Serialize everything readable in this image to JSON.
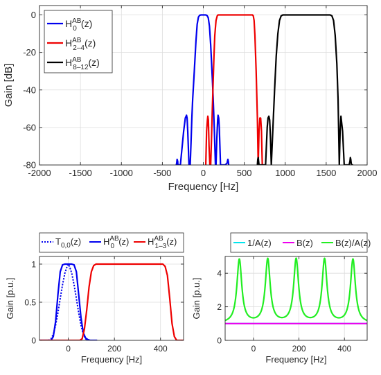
{
  "chart_data": [
    {
      "type": "line",
      "xlabel": "Frequency [Hz]",
      "ylabel": "Gain [dB]",
      "xlim": [
        -2000,
        2000
      ],
      "ylim": [
        -80,
        5
      ],
      "xticks": [
        "-2000",
        "-1500",
        "-1000",
        "-500",
        "0",
        "500",
        "1000",
        "1500",
        "2000"
      ],
      "yticks": [
        "0",
        "-20",
        "-40",
        "-60",
        "-80"
      ],
      "grid": true,
      "legend_position": "top-left",
      "series": [
        {
          "name": "H0AB(z)",
          "label_base": "H",
          "label_sub": "0",
          "label_sup": "AB",
          "label_tail": "(z)",
          "color": "#0000ee",
          "x": [
            -330,
            -325,
            -320,
            -313,
            -310,
            -300,
            -280,
            -240,
            -220,
            -205,
            -198,
            -190,
            -175,
            -160,
            -150,
            -140,
            -130,
            -110,
            -90,
            -75,
            -60,
            -45,
            -30,
            -15,
            0,
            15,
            30,
            45,
            60,
            75,
            90,
            110,
            120,
            135,
            148,
            155,
            165,
            175,
            180,
            188,
            195,
            210,
            230,
            265,
            290,
            300,
            305,
            310
          ],
          "y": [
            -80,
            -79,
            -77,
            -78,
            -80,
            -80,
            -80,
            -62,
            -55,
            -53.5,
            -55,
            -62,
            -80,
            -80,
            -68,
            -55,
            -45,
            -30,
            -14,
            -5,
            -1.2,
            -0.2,
            0,
            0,
            0,
            0,
            0,
            -0.3,
            -1.5,
            -6,
            -16,
            -34,
            -44,
            -62,
            -80,
            -80,
            -66,
            -56,
            -53.5,
            -55,
            -60,
            -80,
            -80,
            -80,
            -79,
            -77,
            -78,
            -80
          ]
        },
        {
          "name": "H2-4AB(z)",
          "label_base": "H",
          "label_sub": "2–4",
          "label_sup": "AB",
          "label_tail": "(z)",
          "color": "#ee0000",
          "x": [
            30,
            40,
            50,
            55,
            62,
            70,
            80,
            90,
            100,
            110,
            120,
            130,
            140,
            155,
            170,
            180,
            190,
            200,
            600,
            610,
            620,
            630,
            645,
            660,
            670,
            680,
            690,
            700,
            710,
            720
          ],
          "y": [
            -80,
            -62,
            -56,
            -54,
            -56,
            -70,
            -80,
            -80,
            -66,
            -50,
            -36,
            -22,
            -11,
            -3,
            -0.5,
            0,
            0,
            0,
            0,
            -0.5,
            -3,
            -11,
            -30,
            -55,
            -80,
            -62,
            -55,
            -55,
            -62,
            -80
          ]
        },
        {
          "name": "H8-12AB(z)",
          "label_base": "H",
          "label_sub": "8–12",
          "label_sup": "AB",
          "label_tail": "(z)",
          "color": "#000000",
          "x": [
            660,
            665,
            670,
            675,
            680,
            760,
            770,
            780,
            790,
            800,
            810,
            820,
            830,
            850,
            870,
            890,
            910,
            930,
            950,
            970,
            1550,
            1570,
            1590,
            1610,
            1630,
            1645,
            1660,
            1670,
            1680,
            1700,
            1720,
            1740,
            1780,
            1790,
            1795,
            1800,
            1805,
            1810,
            1830
          ],
          "y": [
            -80,
            -77,
            -76,
            -78,
            -80,
            -80,
            -70,
            -60,
            -55,
            -54,
            -56,
            -66,
            -80,
            -60,
            -40,
            -22,
            -10,
            -3,
            -0.5,
            0,
            0,
            -0.5,
            -3,
            -11,
            -26,
            -45,
            -80,
            -62,
            -54,
            -62,
            -80,
            -80,
            -80,
            -78,
            -76,
            -77,
            -79,
            -80,
            -80
          ]
        }
      ]
    },
    {
      "type": "line",
      "xlabel": "Frequency [Hz]",
      "ylabel": "Gain [p.u.]",
      "xlim": [
        -125,
        500
      ],
      "ylim": [
        0,
        1.1
      ],
      "xticks": [
        "0",
        "200",
        "400"
      ],
      "yticks": [
        "1",
        "0.5",
        "0"
      ],
      "grid": true,
      "legend_position": "top-outside",
      "series": [
        {
          "name": "T0,0(z)",
          "label_base": "T",
          "label_sub": "0,0",
          "label_sup": "",
          "label_tail": "(z)",
          "color": "#0000ee",
          "dash": "dotted",
          "x": [
            -125,
            -85,
            -75,
            -65,
            -55,
            -45,
            -35,
            -25,
            -15,
            -5,
            0,
            5,
            15,
            25,
            35,
            45,
            55,
            65,
            75,
            85,
            125
          ],
          "y": [
            0,
            0,
            0.02,
            0.08,
            0.2,
            0.36,
            0.55,
            0.73,
            0.88,
            0.97,
            1.0,
            0.97,
            0.88,
            0.73,
            0.55,
            0.36,
            0.2,
            0.08,
            0.02,
            0,
            0
          ]
        },
        {
          "name": "H0AB(z)",
          "label_base": "H",
          "label_sub": "0",
          "label_sup": "AB",
          "label_tail": "(z)",
          "color": "#0000ee",
          "x": [
            -125,
            -75,
            -65,
            -55,
            -45,
            -35,
            -25,
            -15,
            0,
            15,
            25,
            35,
            45,
            55,
            65,
            75,
            85,
            95,
            125
          ],
          "y": [
            0,
            0,
            0.05,
            0.25,
            0.6,
            0.9,
            0.99,
            1.0,
            1.0,
            1.0,
            0.99,
            0.9,
            0.6,
            0.3,
            0.1,
            0.03,
            0.01,
            0,
            0
          ]
        },
        {
          "name": "H1-3AB(z)",
          "label_base": "H",
          "label_sub": "1–3",
          "label_sup": "AB",
          "label_tail": "(z)",
          "color": "#ee0000",
          "x": [
            -125,
            50,
            60,
            70,
            80,
            90,
            100,
            110,
            120,
            130,
            140,
            400,
            410,
            420,
            430,
            440,
            450,
            460,
            470,
            500
          ],
          "y": [
            0,
            0,
            0.02,
            0.15,
            0.4,
            0.7,
            0.9,
            0.98,
            1.0,
            1.0,
            1.0,
            1.0,
            1.0,
            0.97,
            0.85,
            0.55,
            0.22,
            0.05,
            0,
            0
          ]
        }
      ]
    },
    {
      "type": "line",
      "xlabel": "Frequency [Hz]",
      "ylabel": "Gain [p.u.]",
      "xlim": [
        -125,
        500
      ],
      "ylim": [
        0,
        5
      ],
      "xticks": [
        "0",
        "200",
        "400"
      ],
      "yticks": [
        "4",
        "2",
        "0"
      ],
      "grid": true,
      "legend_position": "top-outside",
      "series": [
        {
          "name": "1/A(z)",
          "label_base": "1/A(z)",
          "label_sub": "",
          "label_sup": "",
          "label_tail": "",
          "color": "#00e5ee",
          "x": [
            -125,
            500
          ],
          "y": [
            1,
            1
          ]
        },
        {
          "name": "B(z)",
          "label_base": "B(z)",
          "label_sub": "",
          "label_sup": "",
          "label_tail": "",
          "color": "#ee00ee",
          "x": [
            -125,
            500
          ],
          "y": [
            1,
            1
          ]
        },
        {
          "name": "B(z)/A(z)",
          "label_base": "B(z)/A(z)",
          "label_sub": "",
          "label_sup": "",
          "label_tail": "",
          "color": "#22ee22",
          "peaks": [
            -62.5,
            62.5,
            187.5,
            312.5,
            437.5
          ],
          "peak_value": 4.8,
          "base_value": 1.0,
          "peak_width": 13
        }
      ]
    }
  ]
}
